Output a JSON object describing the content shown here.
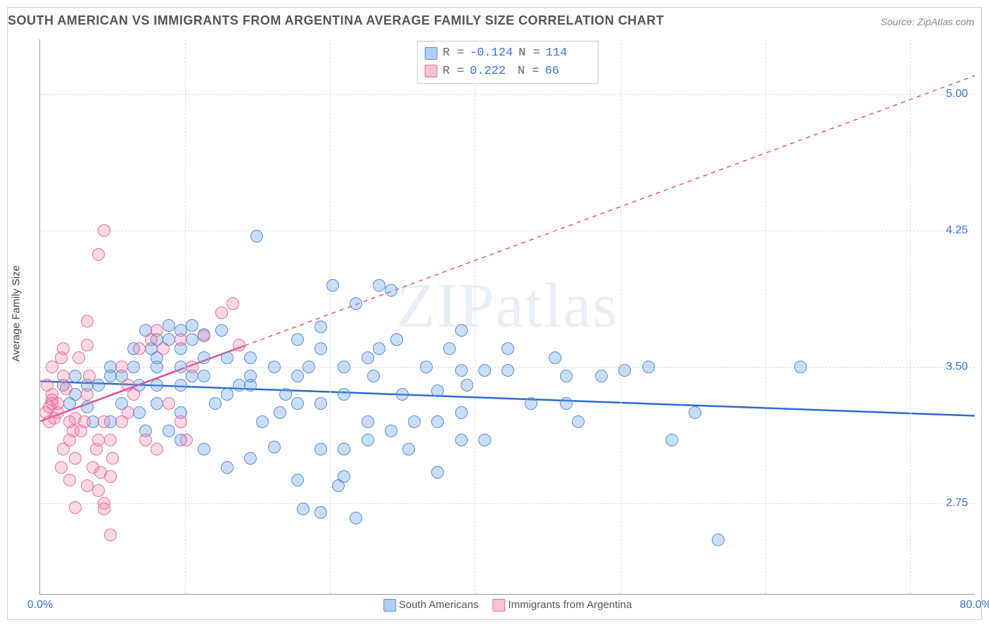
{
  "chart": {
    "type": "scatter",
    "title": "SOUTH AMERICAN VS IMMIGRANTS FROM ARGENTINA AVERAGE FAMILY SIZE CORRELATION CHART",
    "source_label": "Source: ZipAtlas.com",
    "watermark": "ZIPatlas",
    "yaxis_title": "Average Family Size",
    "background_color": "#ffffff",
    "grid_color": "#dddddd",
    "border_color": "#d0d0d0",
    "axis_color": "#999999",
    "tick_label_color": "#3b74d1",
    "title_color": "#555555",
    "title_fontsize": 18,
    "tick_fontsize": 16,
    "yaxis_title_fontsize": 15,
    "xlim": [
      0,
      80
    ],
    "ylim": [
      2.25,
      5.3
    ],
    "xticks": [
      0,
      80
    ],
    "xtick_labels": [
      "0.0%",
      "80.0%"
    ],
    "yticks": [
      2.75,
      3.5,
      4.25,
      5.0
    ],
    "ytick_labels": [
      "2.75",
      "3.50",
      "4.25",
      "5.00"
    ],
    "vgrid_at": [
      12.4,
      24.8,
      37.2,
      49.6,
      62.0,
      74.4
    ],
    "marker_radius": 9,
    "stats_legend": {
      "rows": [
        {
          "swatch": "blue",
          "R_label": "R =",
          "R": "-0.124",
          "N_label": "N =",
          "N": "114"
        },
        {
          "swatch": "pink",
          "R_label": "R =",
          "R": " 0.222",
          "N_label": "N =",
          "N": " 66"
        }
      ],
      "font": "monospace",
      "fontsize": 17
    },
    "bottom_legend": {
      "items": [
        {
          "swatch": "blue",
          "label": "South Americans"
        },
        {
          "swatch": "pink",
          "label": "Immigrants from Argentina"
        }
      ],
      "fontsize": 15
    },
    "series": [
      {
        "name": "South Americans",
        "marker_fill": "rgba(100,160,230,0.35)",
        "marker_stroke": "#5b8ed6",
        "trend": {
          "x1": 0,
          "y1": 3.42,
          "x2": 80,
          "y2": 3.23,
          "solid_until_x": 80,
          "color": "#2d6bd0",
          "width": 2.5
        },
        "points": [
          [
            18.5,
            4.22
          ],
          [
            30.0,
            3.92
          ],
          [
            29.0,
            3.95
          ],
          [
            36.0,
            3.7
          ],
          [
            27.0,
            3.85
          ],
          [
            25.0,
            3.95
          ],
          [
            24.0,
            3.72
          ],
          [
            40.0,
            3.6
          ],
          [
            40.0,
            3.48
          ],
          [
            38.0,
            3.48
          ],
          [
            36.0,
            3.48
          ],
          [
            45.0,
            3.45
          ],
          [
            45.0,
            3.3
          ],
          [
            48.0,
            3.45
          ],
          [
            50.0,
            3.48
          ],
          [
            52.0,
            3.5
          ],
          [
            56.0,
            3.25
          ],
          [
            58.0,
            2.55
          ],
          [
            65.0,
            3.5
          ],
          [
            24.0,
            2.7
          ],
          [
            27.0,
            2.67
          ],
          [
            22.5,
            2.72
          ],
          [
            26.0,
            2.9
          ],
          [
            22.0,
            2.88
          ],
          [
            25.5,
            2.85
          ],
          [
            24.0,
            3.05
          ],
          [
            26.0,
            3.05
          ],
          [
            14.0,
            3.05
          ],
          [
            16.0,
            2.95
          ],
          [
            18.0,
            3.0
          ],
          [
            20.0,
            3.06
          ],
          [
            28.0,
            3.1
          ],
          [
            30.0,
            3.15
          ],
          [
            28.0,
            3.2
          ],
          [
            32.0,
            3.2
          ],
          [
            34.0,
            3.2
          ],
          [
            36.0,
            3.25
          ],
          [
            36.0,
            3.1
          ],
          [
            38.0,
            3.1
          ],
          [
            19.0,
            3.2
          ],
          [
            20.5,
            3.25
          ],
          [
            22.0,
            3.3
          ],
          [
            24.0,
            3.3
          ],
          [
            26.0,
            3.35
          ],
          [
            21.0,
            3.35
          ],
          [
            18.0,
            3.4
          ],
          [
            18.0,
            3.45
          ],
          [
            22.0,
            3.45
          ],
          [
            23.0,
            3.5
          ],
          [
            20.0,
            3.5
          ],
          [
            18.0,
            3.55
          ],
          [
            16.0,
            3.55
          ],
          [
            14.0,
            3.55
          ],
          [
            14.0,
            3.45
          ],
          [
            13.0,
            3.45
          ],
          [
            12.0,
            3.4
          ],
          [
            10.0,
            3.4
          ],
          [
            8.5,
            3.4
          ],
          [
            10.0,
            3.5
          ],
          [
            12.0,
            3.5
          ],
          [
            10.0,
            3.55
          ],
          [
            12.0,
            3.6
          ],
          [
            9.5,
            3.6
          ],
          [
            8.0,
            3.5
          ],
          [
            7.0,
            3.45
          ],
          [
            6.0,
            3.45
          ],
          [
            5.0,
            3.4
          ],
          [
            6.0,
            3.5
          ],
          [
            8.0,
            3.6
          ],
          [
            10.0,
            3.65
          ],
          [
            11.0,
            3.65
          ],
          [
            12.0,
            3.7
          ],
          [
            13.0,
            3.65
          ],
          [
            14.0,
            3.68
          ],
          [
            15.5,
            3.7
          ],
          [
            13.0,
            3.73
          ],
          [
            11.0,
            3.73
          ],
          [
            9.0,
            3.7
          ],
          [
            10.0,
            3.3
          ],
          [
            12.0,
            3.25
          ],
          [
            15.0,
            3.3
          ],
          [
            16.0,
            3.35
          ],
          [
            17.0,
            3.4
          ],
          [
            7.0,
            3.3
          ],
          [
            8.5,
            3.25
          ],
          [
            9.0,
            3.15
          ],
          [
            11.0,
            3.15
          ],
          [
            12.0,
            3.1
          ],
          [
            6.0,
            3.2
          ],
          [
            4.5,
            3.2
          ],
          [
            3.0,
            3.35
          ],
          [
            4.0,
            3.4
          ],
          [
            3.0,
            3.45
          ],
          [
            2.0,
            3.4
          ],
          [
            2.5,
            3.3
          ],
          [
            4.0,
            3.28
          ],
          [
            30.5,
            3.65
          ],
          [
            28.5,
            3.45
          ],
          [
            31.0,
            3.35
          ],
          [
            33.0,
            3.5
          ],
          [
            34.0,
            3.37
          ],
          [
            31.5,
            3.05
          ],
          [
            26.0,
            3.5
          ],
          [
            28.0,
            3.55
          ],
          [
            29.0,
            3.6
          ],
          [
            35.0,
            3.6
          ],
          [
            36.5,
            3.4
          ],
          [
            42.0,
            3.3
          ],
          [
            44.0,
            3.55
          ],
          [
            46.0,
            3.2
          ],
          [
            54.0,
            3.1
          ],
          [
            34.0,
            2.92
          ],
          [
            22.0,
            3.65
          ],
          [
            24.0,
            3.6
          ]
        ]
      },
      {
        "name": "Immigrants from Argentina",
        "marker_fill": "rgba(240,130,170,0.30)",
        "marker_stroke": "#e56f9b",
        "trend": {
          "x1": 0,
          "y1": 3.2,
          "x2": 80,
          "y2": 5.1,
          "solid_until_x": 17.5,
          "color": "#e94d85",
          "width": 2.5,
          "dash": "6,6"
        },
        "points": [
          [
            5.5,
            4.25
          ],
          [
            5.0,
            4.12
          ],
          [
            4.0,
            3.75
          ],
          [
            4.0,
            3.62
          ],
          [
            2.0,
            3.6
          ],
          [
            3.3,
            3.55
          ],
          [
            4.2,
            3.45
          ],
          [
            4.0,
            3.35
          ],
          [
            2.0,
            3.45
          ],
          [
            2.2,
            3.38
          ],
          [
            1.0,
            3.35
          ],
          [
            1.0,
            3.32
          ],
          [
            1.0,
            3.3
          ],
          [
            0.8,
            3.28
          ],
          [
            1.5,
            3.3
          ],
          [
            1.5,
            3.25
          ],
          [
            1.2,
            3.22
          ],
          [
            0.8,
            3.2
          ],
          [
            2.5,
            3.2
          ],
          [
            3.0,
            3.22
          ],
          [
            2.8,
            3.15
          ],
          [
            3.5,
            3.15
          ],
          [
            3.8,
            3.2
          ],
          [
            2.5,
            3.1
          ],
          [
            2.0,
            3.05
          ],
          [
            3.0,
            3.0
          ],
          [
            4.8,
            3.05
          ],
          [
            5.0,
            3.1
          ],
          [
            5.5,
            3.2
          ],
          [
            6.0,
            3.1
          ],
          [
            6.2,
            3.0
          ],
          [
            4.5,
            2.95
          ],
          [
            5.2,
            2.92
          ],
          [
            6.0,
            2.9
          ],
          [
            4.0,
            2.85
          ],
          [
            5.0,
            2.82
          ],
          [
            5.5,
            2.75
          ],
          [
            3.0,
            2.73
          ],
          [
            6.0,
            2.58
          ],
          [
            5.5,
            2.72
          ],
          [
            7.0,
            3.2
          ],
          [
            7.5,
            3.25
          ],
          [
            8.0,
            3.35
          ],
          [
            7.5,
            3.4
          ],
          [
            7.0,
            3.5
          ],
          [
            8.5,
            3.6
          ],
          [
            9.5,
            3.65
          ],
          [
            10.0,
            3.7
          ],
          [
            10.5,
            3.6
          ],
          [
            12.0,
            3.65
          ],
          [
            11.0,
            3.3
          ],
          [
            12.0,
            3.2
          ],
          [
            12.5,
            3.1
          ],
          [
            9.0,
            3.1
          ],
          [
            10.0,
            3.05
          ],
          [
            13.0,
            3.5
          ],
          [
            14.0,
            3.67
          ],
          [
            15.5,
            3.8
          ],
          [
            16.5,
            3.85
          ],
          [
            17.0,
            3.62
          ],
          [
            1.8,
            2.95
          ],
          [
            2.5,
            2.88
          ],
          [
            0.6,
            3.4
          ],
          [
            1.0,
            3.5
          ],
          [
            1.8,
            3.55
          ],
          [
            0.5,
            3.25
          ]
        ]
      }
    ]
  }
}
